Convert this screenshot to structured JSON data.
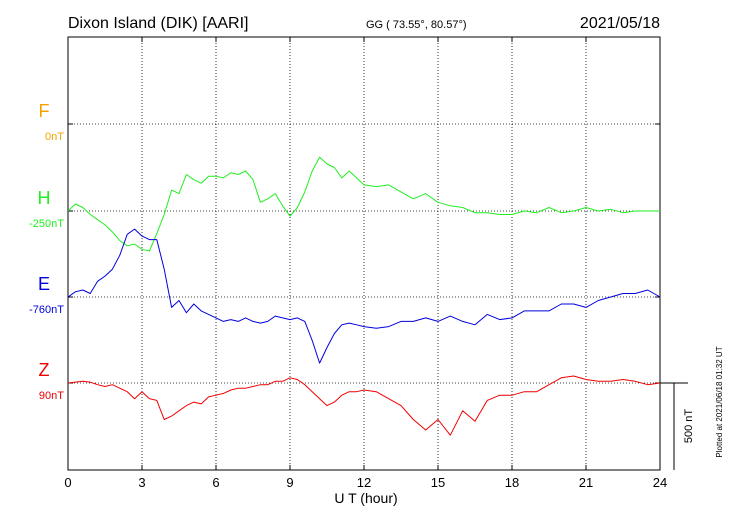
{
  "header": {
    "station": "Dixon Island (DIK)  [AARI]",
    "coords": "GG ( 73.55°,  80.57°)",
    "date": "2021/05/18"
  },
  "side_note": "Plotted at 2021/06/18 01:32 UT",
  "scale_label": "500 nT",
  "chart_data": {
    "type": "line",
    "title": "Dixon Island (DIK)  [AARI]",
    "xlabel": "U T (hour)",
    "ylabel": "",
    "xlim": [
      0,
      24
    ],
    "x_ticks": [
      0,
      3,
      6,
      9,
      12,
      15,
      18,
      21,
      24
    ],
    "x_tick_labels": [
      "0",
      "3",
      "6",
      "9",
      "12",
      "15",
      "18",
      "21",
      "24"
    ],
    "grid": true,
    "scale_bar_nT": 500,
    "series": [
      {
        "name": "F",
        "baseline_label": "0nT",
        "color": "#f5a000",
        "x": [],
        "y": []
      },
      {
        "name": "H",
        "baseline_label": "-250nT",
        "color": "#22ee22",
        "x": [
          0,
          0.3,
          0.6,
          0.9,
          1.2,
          1.5,
          1.8,
          2.1,
          2.4,
          2.7,
          3.0,
          3.3,
          3.6,
          3.9,
          4.2,
          4.5,
          4.8,
          5.1,
          5.4,
          5.7,
          6.0,
          6.3,
          6.6,
          6.9,
          7.2,
          7.5,
          7.8,
          8.1,
          8.4,
          8.7,
          9.0,
          9.3,
          9.6,
          9.9,
          10.2,
          10.5,
          10.8,
          11.1,
          11.4,
          11.7,
          12.0,
          12.5,
          13.0,
          13.5,
          14.0,
          14.5,
          15.0,
          15.5,
          16.0,
          16.5,
          17.0,
          17.5,
          18.0,
          18.5,
          19.0,
          19.5,
          20.0,
          20.5,
          21.0,
          21.5,
          22.0,
          22.5,
          23.0,
          23.5,
          24.0
        ],
        "y": [
          -250,
          -210,
          -230,
          -270,
          -300,
          -330,
          -370,
          -420,
          -450,
          -440,
          -470,
          -480,
          -380,
          -270,
          -130,
          -150,
          -40,
          -70,
          -90,
          -50,
          -50,
          -60,
          -30,
          -40,
          -20,
          -70,
          -200,
          -180,
          -150,
          -220,
          -280,
          -230,
          -140,
          -20,
          60,
          20,
          0,
          -60,
          -20,
          -60,
          -100,
          -110,
          -100,
          -140,
          -180,
          -150,
          -200,
          -220,
          -230,
          -260,
          -260,
          -270,
          -270,
          -250,
          -260,
          -230,
          -260,
          -250,
          -230,
          -250,
          -240,
          -260,
          -250,
          -250,
          -250
        ]
      },
      {
        "name": "E",
        "baseline_label": "-760nT",
        "color": "#0000dd",
        "x": [
          0,
          0.3,
          0.6,
          0.9,
          1.2,
          1.5,
          1.8,
          2.1,
          2.4,
          2.7,
          3.0,
          3.3,
          3.6,
          3.9,
          4.2,
          4.5,
          4.8,
          5.1,
          5.4,
          5.7,
          6.0,
          6.3,
          6.6,
          6.9,
          7.2,
          7.5,
          7.8,
          8.1,
          8.4,
          8.7,
          9.0,
          9.3,
          9.6,
          9.9,
          10.2,
          10.5,
          10.8,
          11.1,
          11.4,
          11.7,
          12.0,
          12.5,
          13.0,
          13.5,
          14.0,
          14.5,
          15.0,
          15.5,
          16.0,
          16.5,
          17.0,
          17.5,
          18.0,
          18.5,
          19.0,
          19.5,
          20.0,
          20.5,
          21.0,
          21.5,
          22.0,
          22.5,
          23.0,
          23.5,
          24.0
        ],
        "y": [
          -760,
          -730,
          -720,
          -740,
          -670,
          -640,
          -600,
          -520,
          -400,
          -370,
          -410,
          -430,
          -430,
          -600,
          -820,
          -780,
          -850,
          -800,
          -840,
          -860,
          -880,
          -900,
          -890,
          -900,
          -880,
          -900,
          -910,
          -900,
          -870,
          -880,
          -890,
          -880,
          -900,
          -1010,
          -1140,
          -1050,
          -970,
          -920,
          -910,
          -920,
          -930,
          -940,
          -930,
          -900,
          -900,
          -880,
          -900,
          -870,
          -900,
          -920,
          -860,
          -890,
          -880,
          -840,
          -840,
          -840,
          -800,
          -800,
          -820,
          -780,
          -760,
          -740,
          -740,
          -720,
          -760
        ]
      },
      {
        "name": "Z",
        "baseline_label": "90nT",
        "color": "#ee0000",
        "x": [
          0,
          0.3,
          0.6,
          0.9,
          1.2,
          1.5,
          1.8,
          2.1,
          2.4,
          2.7,
          3.0,
          3.3,
          3.6,
          3.9,
          4.2,
          4.5,
          4.8,
          5.1,
          5.4,
          5.7,
          6.0,
          6.3,
          6.6,
          6.9,
          7.2,
          7.5,
          7.8,
          8.1,
          8.4,
          8.7,
          9.0,
          9.3,
          9.6,
          9.9,
          10.2,
          10.5,
          10.8,
          11.1,
          11.4,
          11.7,
          12.0,
          12.5,
          13.0,
          13.5,
          14.0,
          14.5,
          15.0,
          15.5,
          16.0,
          16.5,
          17.0,
          17.5,
          18.0,
          18.5,
          19.0,
          19.5,
          20.0,
          20.5,
          21.0,
          21.5,
          22.0,
          22.5,
          23.0,
          23.5,
          24.0
        ],
        "y": [
          90,
          95,
          100,
          95,
          80,
          70,
          80,
          60,
          40,
          0,
          40,
          0,
          -10,
          -120,
          -100,
          -70,
          -40,
          -20,
          -30,
          10,
          20,
          30,
          50,
          60,
          60,
          70,
          80,
          80,
          100,
          100,
          120,
          110,
          80,
          40,
          0,
          -40,
          -20,
          20,
          40,
          40,
          50,
          40,
          0,
          -40,
          -120,
          -180,
          -120,
          -210,
          -70,
          -130,
          -10,
          20,
          20,
          40,
          40,
          80,
          120,
          130,
          110,
          100,
          100,
          110,
          100,
          80,
          90
        ]
      }
    ]
  }
}
